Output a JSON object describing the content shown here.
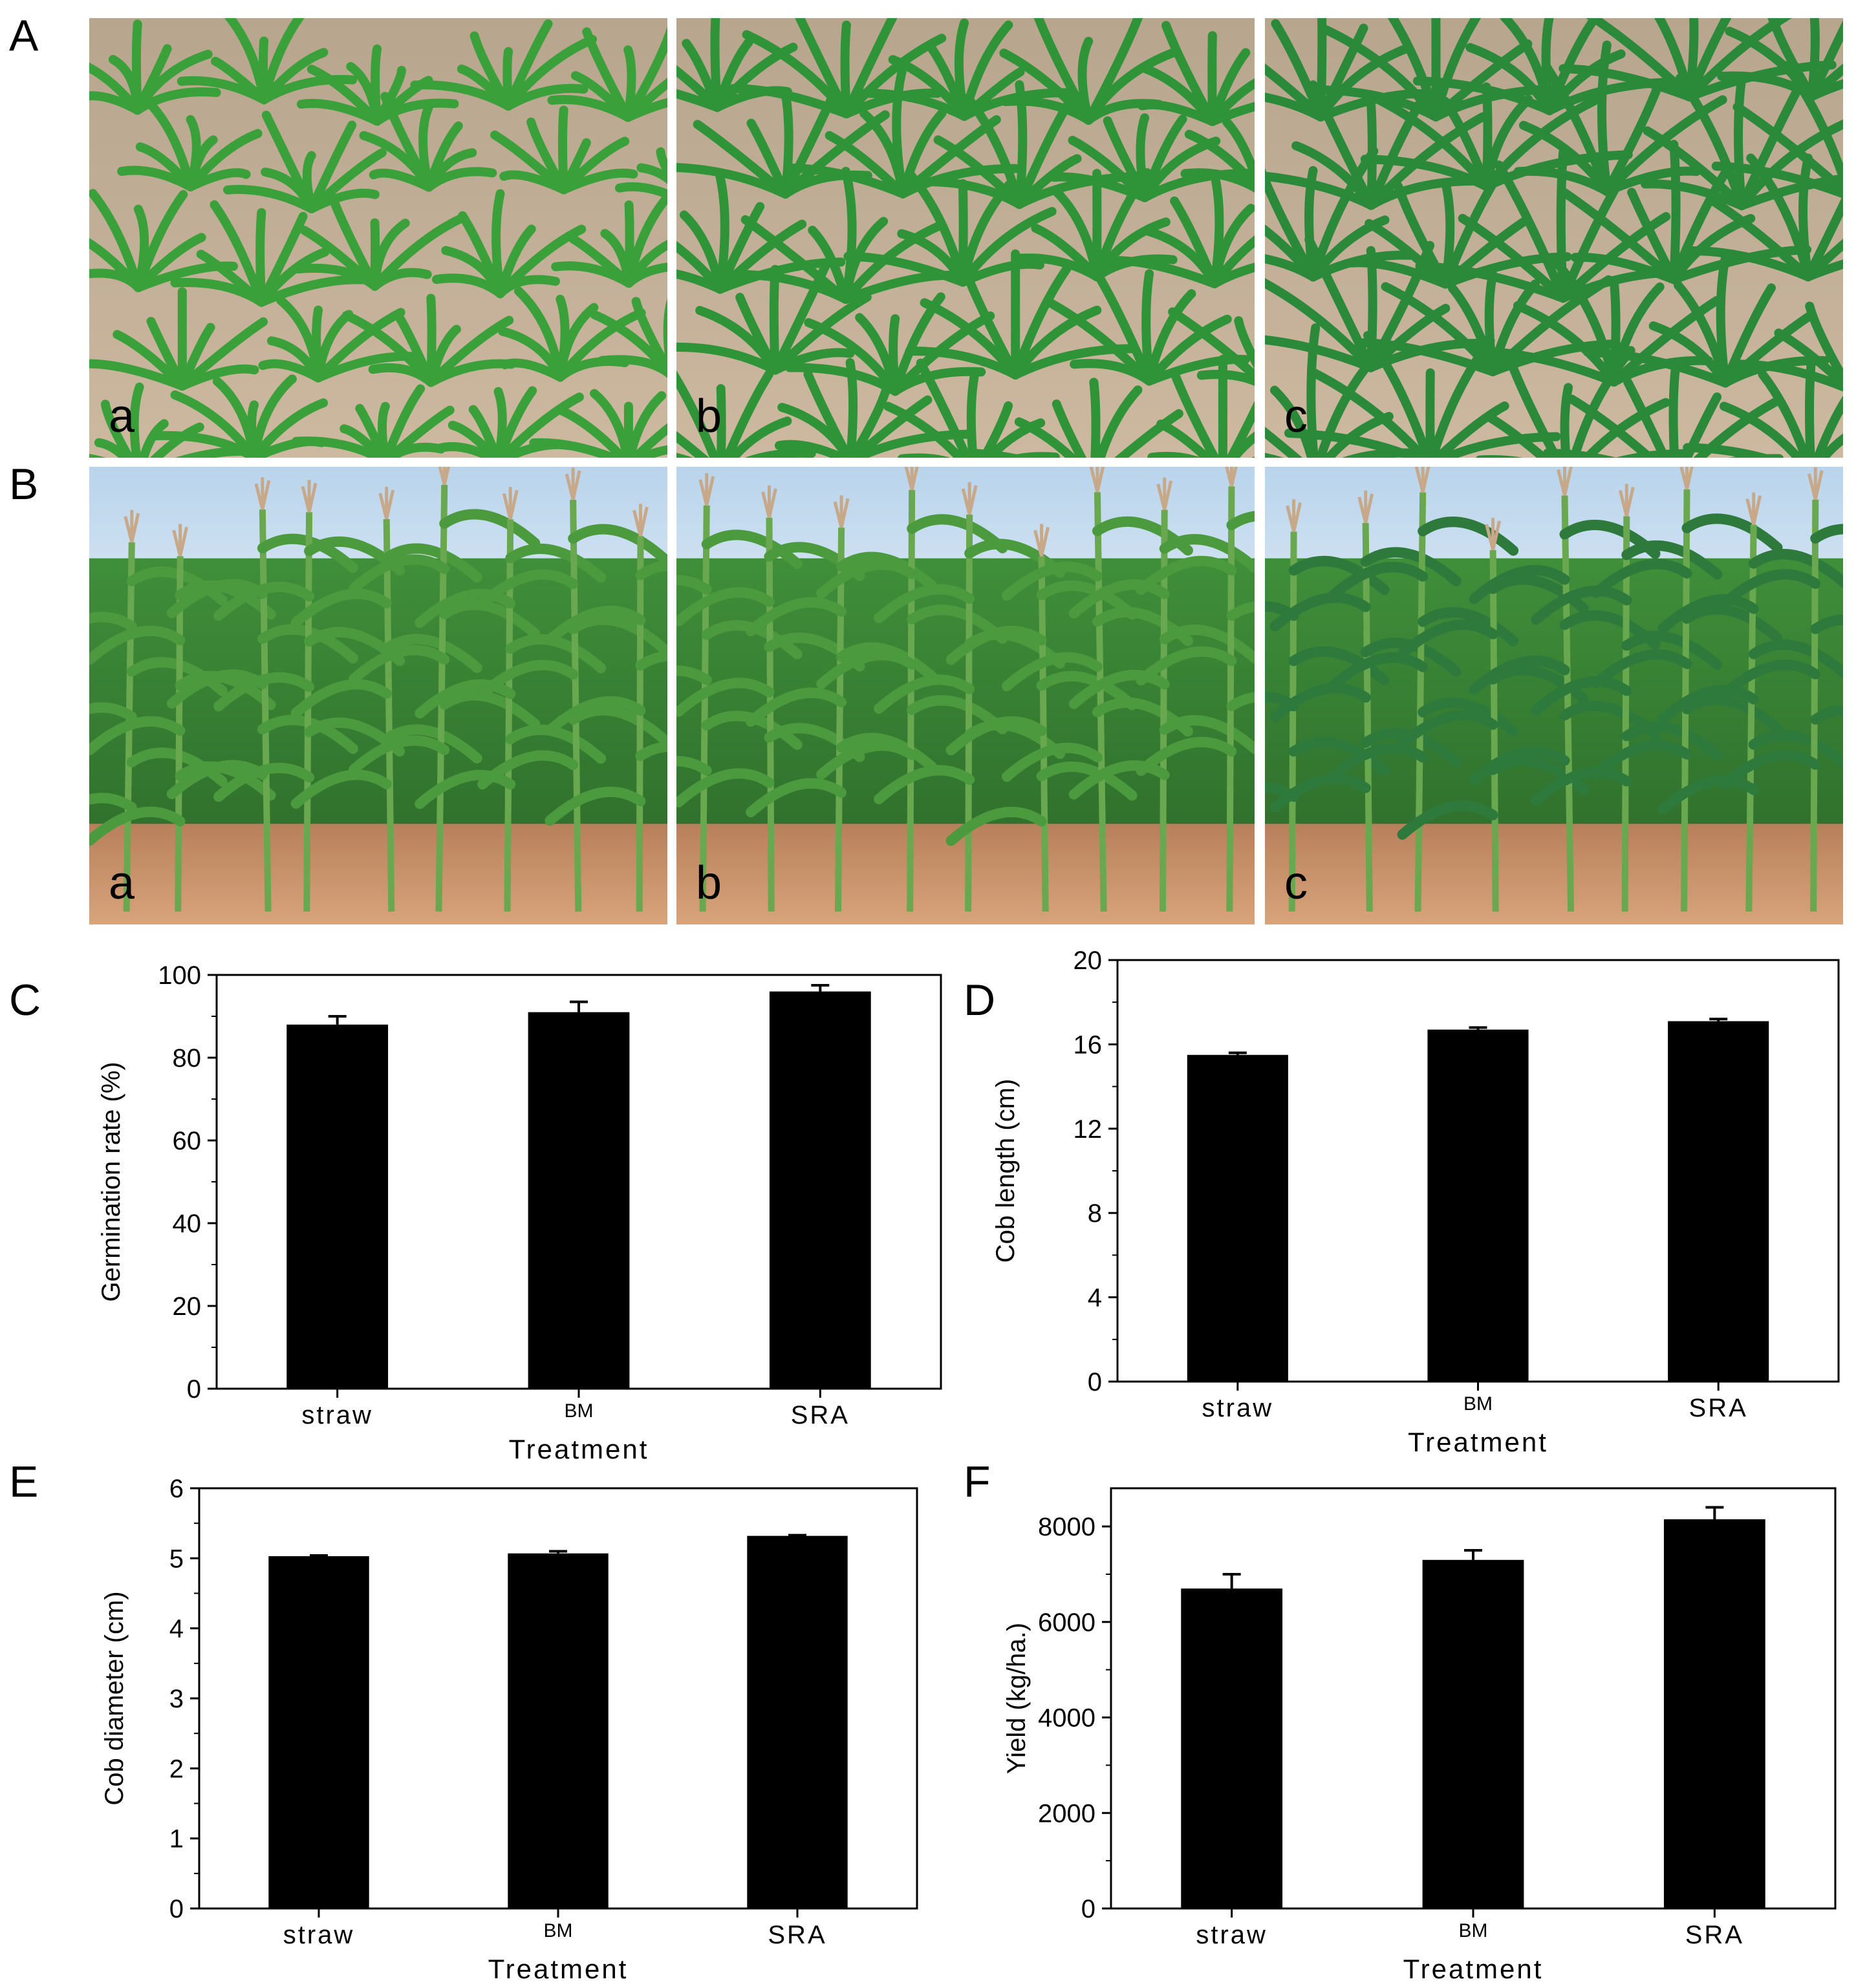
{
  "figure": {
    "photo_rows": [
      {
        "label": "A",
        "name": "seedling",
        "photos": [
          {
            "sub": "a",
            "name": "seedling-photo-a"
          },
          {
            "sub": "b",
            "name": "seedling-photo-b"
          },
          {
            "sub": "c",
            "name": "seedling-photo-c"
          }
        ]
      },
      {
        "label": "B",
        "name": "mature",
        "photos": [
          {
            "sub": "a",
            "name": "mature-photo-a"
          },
          {
            "sub": "b",
            "name": "mature-photo-b"
          },
          {
            "sub": "c",
            "name": "mature-photo-c"
          }
        ]
      }
    ]
  },
  "chart_data": [
    {
      "panel": "C",
      "type": "bar",
      "categories": [
        "straw",
        "BM",
        "SRA"
      ],
      "values": [
        88,
        91,
        96
      ],
      "errors": [
        2,
        2.5,
        1.5
      ],
      "xlabel": "Treatment",
      "ylabel": "Germination rate (%)",
      "ylim": [
        0,
        100
      ],
      "yticks": [
        0,
        20,
        40,
        60,
        80,
        100
      ],
      "bar_color": "#000000"
    },
    {
      "panel": "D",
      "type": "bar",
      "categories": [
        "straw",
        "BM",
        "SRA"
      ],
      "values": [
        15.5,
        16.7,
        17.1
      ],
      "errors": [
        0.1,
        0.1,
        0.1
      ],
      "xlabel": "Treatment",
      "ylabel": "Cob length (cm)",
      "ylim": [
        0,
        20
      ],
      "yticks": [
        0,
        4,
        8,
        12,
        16,
        20
      ],
      "bar_color": "#000000"
    },
    {
      "panel": "E",
      "type": "bar",
      "categories": [
        "straw",
        "BM",
        "SRA"
      ],
      "values": [
        5.03,
        5.07,
        5.32
      ],
      "errors": [
        0.01,
        0.03,
        0.01
      ],
      "xlabel": "Treatment",
      "ylabel": "Cob diameter (cm)",
      "ylim": [
        0,
        6
      ],
      "yticks": [
        0,
        1,
        2,
        3,
        4,
        5,
        6
      ],
      "bar_color": "#000000"
    },
    {
      "panel": "F",
      "type": "bar",
      "categories": [
        "straw",
        "BM",
        "SRA"
      ],
      "values": [
        6700,
        7300,
        8150
      ],
      "errors": [
        300,
        200,
        250
      ],
      "xlabel": "Treatment",
      "ylabel": "Yield (kg/ha.)",
      "ylim": [
        0,
        8800
      ],
      "yticks": [
        0,
        2000,
        4000,
        6000,
        8000
      ],
      "bar_color": "#000000"
    }
  ]
}
